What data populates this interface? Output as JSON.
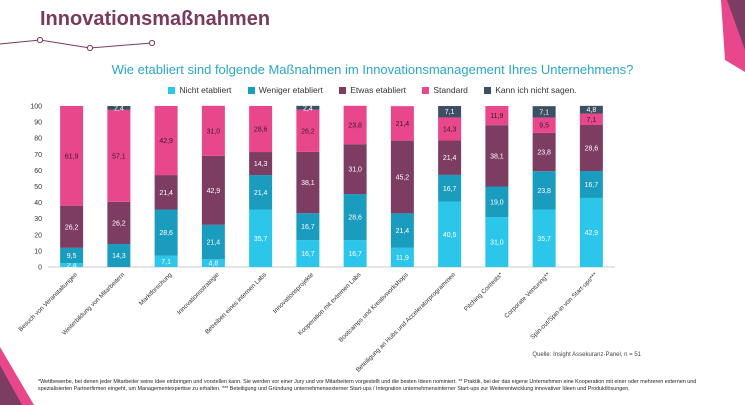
{
  "page": {
    "title": "Innovationsmaßnahmen",
    "question": "Wie etabliert sind folgende Maßnahmen im Innovationsmanagement Ihres Unternehmens?",
    "source": "Quelle: Insight Assekuranz-Panel, n = 51",
    "footnote": "*Wettbewerbe, bei denen jeder Mitarbeiter seine Idee einbringen und vorstellen kann. Sie werden vor einer Jury und vor Mitarbeitern vorgestellt und die besten Ideen nominiert. ** Praktik, bei der das eigene Unternehmen eine Kooperation mit einer oder mehreren externen und spezialisierten Partnerfirmen eingeht, um Managementexpertise zu erhalten. *** Beteiligung und Gründung unternehmensexterner Start-ups / Integration unternehmensinterner Start-ups zur Weiterentwicklung innovativer Ideen und Produktlösungen."
  },
  "colors": {
    "title": "#7a3a5e",
    "question": "#2aa7c9",
    "Nicht etabliert": "#2bc6ea",
    "Weniger etabliert": "#1a9cbf",
    "Etwas etabliert": "#7d3d63",
    "Standard": "#e9478b",
    "Kann ich nicht sagen.": "#3d4f63"
  },
  "chart_data": {
    "type": "bar",
    "stacked": true,
    "title": "Wie etabliert sind folgende Maßnahmen im Innovationsmanagement Ihres Unternehmens?",
    "ylim": [
      0,
      100
    ],
    "yticks": [
      0,
      10,
      20,
      30,
      40,
      50,
      60,
      70,
      80,
      90,
      100
    ],
    "legend_position": "top",
    "categories": [
      "Besuch von Veranstaltungen",
      "Weiterbildung von Mitarbeitern",
      "Marktforschung",
      "Innovationsstrategie",
      "Betreiben eines internen Labs",
      "Innovationsprojekte",
      "Kooperation mit externen Labs",
      "Bootcamps und Kreativworkshops",
      "Beteiligung an Hubs und Acceleratorprogrammen",
      "Pitching Contests*",
      "Corporate Venturing**",
      "Spin-out/Spin-in von Start-ups***"
    ],
    "series": [
      {
        "name": "Nicht etabliert",
        "values": [
          2.4,
          0,
          7.1,
          4.8,
          35.7,
          16.7,
          16.7,
          11.9,
          40.5,
          31.0,
          35.7,
          42.9
        ]
      },
      {
        "name": "Weniger etabliert",
        "values": [
          9.5,
          14.3,
          28.6,
          21.4,
          21.4,
          16.7,
          28.6,
          21.4,
          16.7,
          19.0,
          23.8,
          16.7
        ]
      },
      {
        "name": "Etwas etabliert",
        "values": [
          26.2,
          26.2,
          21.4,
          42.9,
          14.3,
          38.1,
          31.0,
          45.2,
          21.4,
          38.1,
          23.8,
          28.6
        ]
      },
      {
        "name": "Standard",
        "values": [
          61.9,
          57.1,
          42.9,
          31.0,
          28.6,
          26.2,
          23.8,
          21.4,
          14.3,
          11.9,
          9.5,
          7.1
        ]
      },
      {
        "name": "Kann ich nicht sagen.",
        "values": [
          0,
          2.4,
          0,
          0,
          0,
          2.4,
          0,
          0,
          7.1,
          0,
          7.1,
          4.8
        ]
      }
    ],
    "labels": [
      [
        "2,4",
        "",
        "7,1",
        "4,8",
        "35,7",
        "16,7",
        "16,7",
        "11,9",
        "40,5",
        "31,0",
        "35,7",
        "42,9"
      ],
      [
        "9,5",
        "14,3",
        "28,6",
        "21,4",
        "21,4",
        "16,7",
        "28,6",
        "21,4",
        "16,7",
        "19,0",
        "23,8",
        "16,7"
      ],
      [
        "26,2",
        "26,2",
        "21,4",
        "42,9",
        "14,3",
        "38,1",
        "31,0",
        "45,2",
        "21,4",
        "38,1",
        "23,8",
        "28,6"
      ],
      [
        "61,9",
        "57,1",
        "42,9",
        "31,0",
        "28,6",
        "26,2",
        "23,8",
        "21,4",
        "14,3",
        "11,9",
        "9,5",
        "7,1"
      ],
      [
        "",
        "2,4",
        "",
        "",
        "",
        "2,4",
        "",
        "",
        "7,1",
        "",
        "7,1",
        "4,8"
      ]
    ]
  }
}
